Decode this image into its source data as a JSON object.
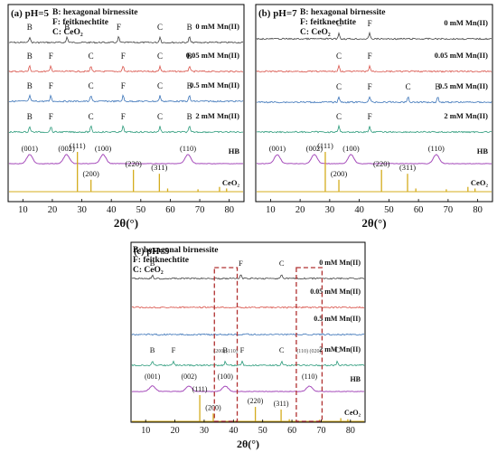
{
  "chart_data": [
    {
      "type": "line",
      "panel_label": "(a) pH=5",
      "legend_lines": [
        "B: hexagonal birnessite",
        "F: feitknechtite",
        "C: CeO₂"
      ],
      "xlabel": "2θ(°)",
      "ylabel": "",
      "xlim": [
        5,
        85
      ],
      "xticks": [
        "10",
        "20",
        "30",
        "40",
        "50",
        "60",
        "70",
        "80"
      ],
      "colors": {
        "s0": "#404040",
        "s1": "#d9534a",
        "s2": "#3a73b8",
        "s3": "#2a9a7a",
        "hb": "#a64dbb",
        "ceo2": "#d4ac1e"
      },
      "series": [
        {
          "name": "0 mM Mn(II)",
          "peaks": [
            {
              "label": "B",
              "x": 12.3
            },
            {
              "label": "B",
              "x": 25.0
            },
            {
              "label": "F",
              "x": 42.5
            },
            {
              "label": "C",
              "x": 56.5
            },
            {
              "label": "B",
              "x": 66.5
            }
          ]
        },
        {
          "name": "0.05 mM Mn(II)",
          "peaks": [
            {
              "label": "B",
              "x": 12.3
            },
            {
              "label": "F",
              "x": 19.5
            },
            {
              "label": "C",
              "x": 33.1
            },
            {
              "label": "F",
              "x": 44.0
            },
            {
              "label": "C",
              "x": 56.5
            },
            {
              "label": "B",
              "x": 66.5
            }
          ]
        },
        {
          "name": "0.5 mM Mn(II)",
          "peaks": [
            {
              "label": "B",
              "x": 12.3
            },
            {
              "label": "F",
              "x": 19.5
            },
            {
              "label": "C",
              "x": 33.1
            },
            {
              "label": "F",
              "x": 44.0
            },
            {
              "label": "C",
              "x": 56.5
            },
            {
              "label": "B",
              "x": 66.5
            }
          ]
        },
        {
          "name": "2 mM Mn(II)",
          "peaks": [
            {
              "label": "B",
              "x": 12.3
            },
            {
              "label": "F",
              "x": 19.5
            },
            {
              "label": "C",
              "x": 33.1
            },
            {
              "label": "F",
              "x": 44.0
            },
            {
              "label": "C",
              "x": 56.5
            },
            {
              "label": "B",
              "x": 66.5
            }
          ]
        }
      ],
      "reference_hb": {
        "name": "HB",
        "peaks": [
          {
            "label": "(001)",
            "x": 12.3
          },
          {
            "label": "(002)",
            "x": 24.8
          },
          {
            "label": "(100)",
            "x": 37.2
          },
          {
            "label": "(110)",
            "x": 66.0
          }
        ]
      },
      "reference_ceo2": {
        "name": "CeO₂",
        "peaks": [
          {
            "label": "(111)",
            "x": 28.5,
            "rel": 1.0
          },
          {
            "label": "(200)",
            "x": 33.1,
            "rel": 0.3
          },
          {
            "label": "(220)",
            "x": 47.5,
            "rel": 0.55
          },
          {
            "label": "(311)",
            "x": 56.3,
            "rel": 0.45
          },
          {
            "label": "",
            "x": 59.1,
            "rel": 0.08
          },
          {
            "label": "",
            "x": 69.4,
            "rel": 0.06
          },
          {
            "label": "",
            "x": 76.7,
            "rel": 0.12
          },
          {
            "label": "",
            "x": 79.1,
            "rel": 0.08
          }
        ]
      }
    },
    {
      "type": "line",
      "panel_label": "(b) pH=7",
      "legend_lines": [
        "B: hexagonal birnessite",
        "F: feitknechtite",
        "C: CeO₂"
      ],
      "xlabel": "2θ(°)",
      "ylabel": "",
      "xlim": [
        5,
        85
      ],
      "xticks": [
        "10",
        "20",
        "30",
        "40",
        "50",
        "60",
        "70",
        "80"
      ],
      "colors": {
        "s0": "#404040",
        "s1": "#d9534a",
        "s2": "#3a73b8",
        "s3": "#2a9a7a",
        "hb": "#a64dbb",
        "ceo2": "#d4ac1e"
      },
      "series": [
        {
          "name": "0 mM Mn(II)",
          "peaks": [
            {
              "label": "C",
              "x": 33.1
            },
            {
              "label": "F",
              "x": 43.5
            }
          ]
        },
        {
          "name": "0.05 mM Mn(II)",
          "peaks": [
            {
              "label": "C",
              "x": 33.1
            },
            {
              "label": "F",
              "x": 43.5
            }
          ]
        },
        {
          "name": "0.5 mM Mn(II)",
          "peaks": [
            {
              "label": "C",
              "x": 33.1
            },
            {
              "label": "F",
              "x": 43.5
            },
            {
              "label": "C",
              "x": 56.5
            },
            {
              "label": "B",
              "x": 66.5
            }
          ]
        },
        {
          "name": "2 mM Mn(II)",
          "peaks": [
            {
              "label": "C",
              "x": 33.1
            },
            {
              "label": "F",
              "x": 43.5
            }
          ]
        }
      ],
      "reference_hb": {
        "name": "HB",
        "peaks": [
          {
            "label": "(001)",
            "x": 12.3
          },
          {
            "label": "(002)",
            "x": 24.8
          },
          {
            "label": "(100)",
            "x": 37.2
          },
          {
            "label": "(110)",
            "x": 66.0
          }
        ]
      },
      "reference_ceo2": {
        "name": "CeO₂",
        "peaks": [
          {
            "label": "(111)",
            "x": 28.5,
            "rel": 1.0
          },
          {
            "label": "(200)",
            "x": 33.1,
            "rel": 0.3
          },
          {
            "label": "(220)",
            "x": 47.5,
            "rel": 0.55
          },
          {
            "label": "(311)",
            "x": 56.3,
            "rel": 0.45
          },
          {
            "label": "",
            "x": 59.1,
            "rel": 0.08
          },
          {
            "label": "",
            "x": 69.4,
            "rel": 0.06
          },
          {
            "label": "",
            "x": 76.7,
            "rel": 0.12
          },
          {
            "label": "",
            "x": 79.1,
            "rel": 0.08
          }
        ]
      }
    },
    {
      "type": "line",
      "panel_label": "(c) pH=9",
      "legend_lines": [
        "B: hexagonal birnessite",
        "F: feitknechtite",
        "C: CeO₂"
      ],
      "xlabel": "2θ(°)",
      "ylabel": "",
      "xlim": [
        5,
        85
      ],
      "xticks": [
        "10",
        "20",
        "30",
        "40",
        "50",
        "60",
        "70",
        "80"
      ],
      "colors": {
        "s0": "#404040",
        "s1": "#d9534a",
        "s2": "#3a73b8",
        "s3": "#2a9a7a",
        "hb": "#a64dbb",
        "ceo2": "#d4ac1e",
        "highlight": "#b03030"
      },
      "series": [
        {
          "name": "0 mM Mn(II)",
          "peaks": [
            {
              "label": "B",
              "x": 12.3
            },
            {
              "label": "F",
              "x": 42.5
            },
            {
              "label": "C",
              "x": 56.5
            }
          ]
        },
        {
          "name": "0.05 mM Mn(II)",
          "peaks": []
        },
        {
          "name": "0.5 mM Mn(II)",
          "peaks": []
        },
        {
          "name": "2 mM Mn(II)",
          "peaks": [
            {
              "label": "B",
              "x": 12.3
            },
            {
              "label": "F",
              "x": 19.5
            },
            {
              "label": "B",
              "x": 37.2
            },
            {
              "label": "F",
              "x": 43.0
            },
            {
              "label": "C",
              "x": 56.5
            },
            {
              "label": "C",
              "x": 75.5
            }
          ]
        }
      ],
      "highlight_annotations": [
        "(200)",
        "(110)",
        "(110)",
        "(020)"
      ],
      "reference_hb": {
        "name": "HB",
        "peaks": [
          {
            "label": "(001)",
            "x": 12.3
          },
          {
            "label": "(002)",
            "x": 24.8
          },
          {
            "label": "(100)",
            "x": 37.2
          },
          {
            "label": "(110)",
            "x": 66.0
          }
        ]
      },
      "reference_ceo2": {
        "name": "CeO₂",
        "peaks": [
          {
            "label": "(111)",
            "x": 28.5,
            "rel": 1.0
          },
          {
            "label": "(200)",
            "x": 33.1,
            "rel": 0.3
          },
          {
            "label": "(220)",
            "x": 47.5,
            "rel": 0.55
          },
          {
            "label": "(311)",
            "x": 56.3,
            "rel": 0.45
          },
          {
            "label": "",
            "x": 59.1,
            "rel": 0.08
          },
          {
            "label": "",
            "x": 69.4,
            "rel": 0.06
          },
          {
            "label": "",
            "x": 76.7,
            "rel": 0.12
          },
          {
            "label": "",
            "x": 79.1,
            "rel": 0.08
          }
        ]
      }
    }
  ]
}
